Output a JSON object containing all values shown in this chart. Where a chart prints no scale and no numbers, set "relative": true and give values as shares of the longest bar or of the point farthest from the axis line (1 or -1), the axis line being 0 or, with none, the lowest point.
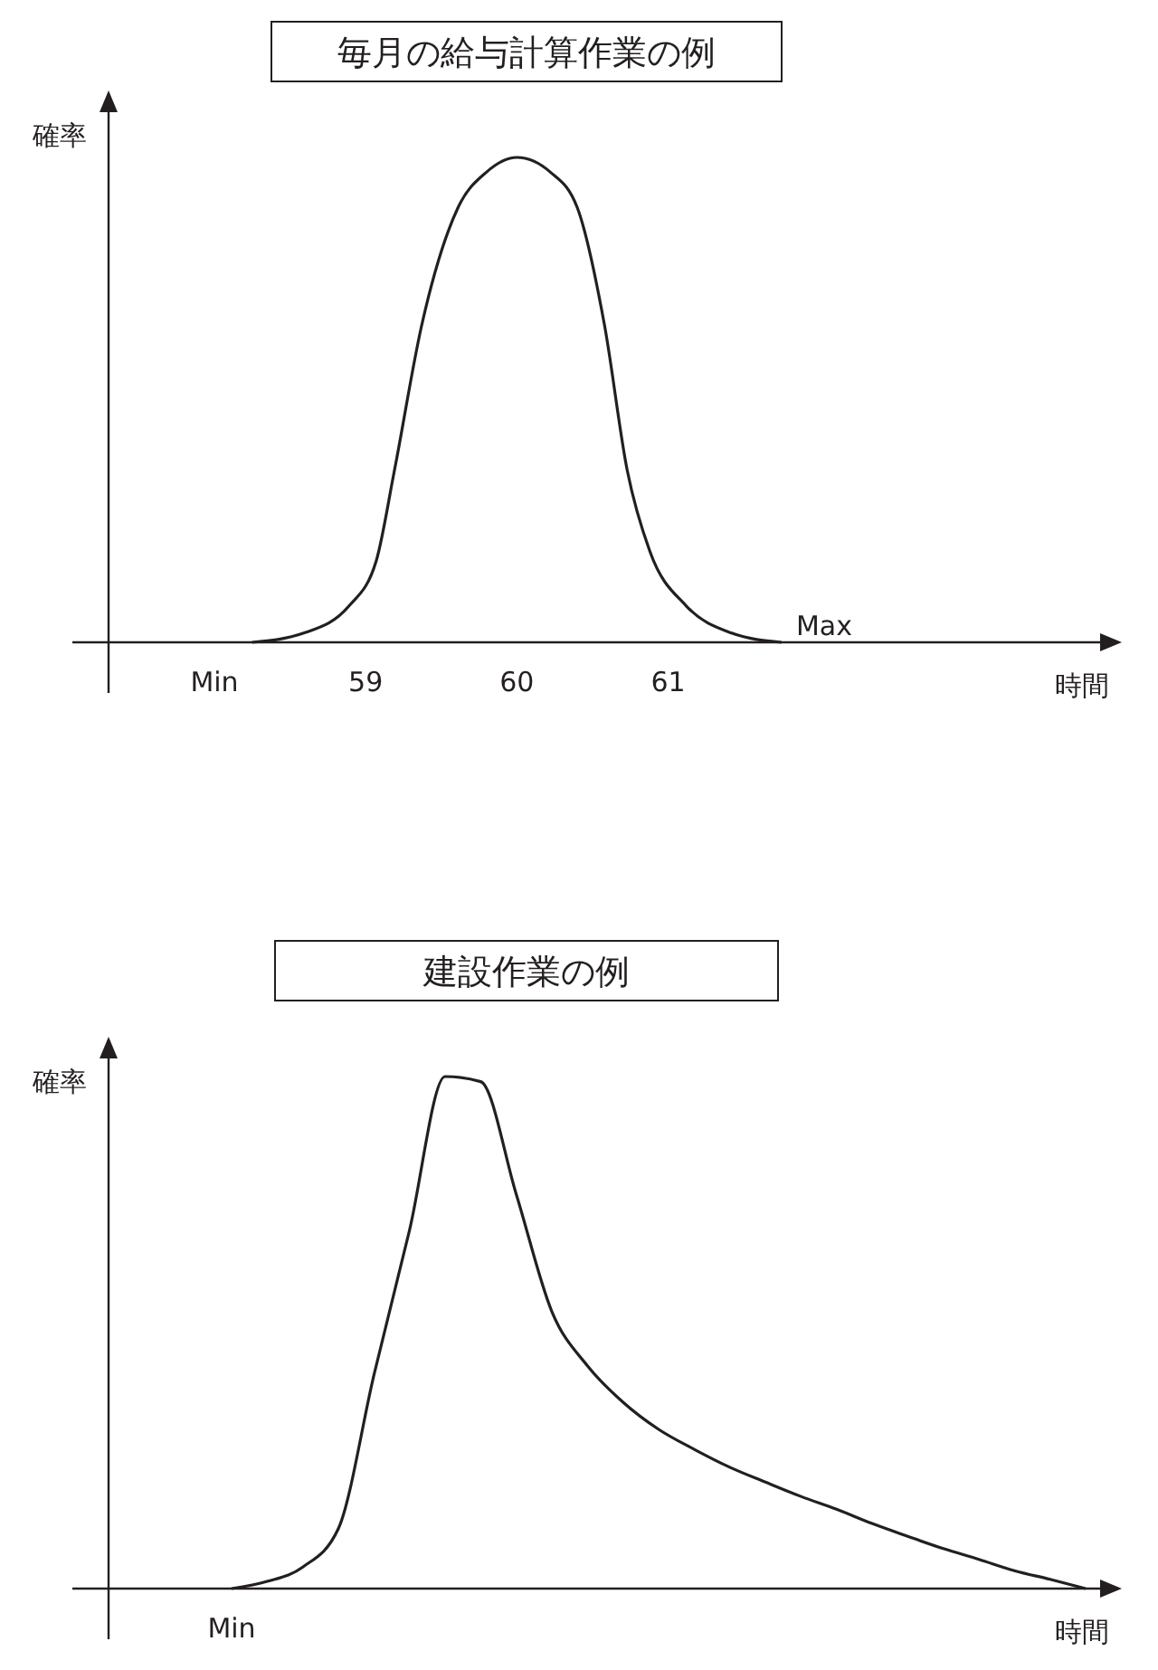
{
  "chart_data": [
    {
      "type": "line",
      "title": "毎月の給与計算作業の例",
      "xlabel": "時間",
      "ylabel": "確率",
      "relative": true,
      "color": "#231f20",
      "marker": "none",
      "x": [
        58.25,
        58.59,
        58.89,
        59.07,
        59.19,
        59.37,
        59.61,
        59.8,
        60,
        60.22,
        60.4,
        60.58,
        60.73,
        60.88,
        61.12,
        61.42,
        61.75
      ],
      "values": [
        0,
        0.019,
        0.075,
        0.168,
        0.354,
        0.653,
        0.896,
        0.97,
        1,
        0.97,
        0.896,
        0.653,
        0.354,
        0.187,
        0.075,
        0.019,
        0
      ],
      "xlim": [
        57.3,
        64
      ],
      "xticks": [
        {
          "value": 58,
          "label": "Min"
        },
        59,
        60,
        61
      ],
      "annotations": [
        {
          "text": "Max",
          "x": 61.75,
          "y": 0
        }
      ]
    },
    {
      "type": "line",
      "title": "建設作業の例",
      "xlabel": "時間",
      "ylabel": "確率",
      "relative": true,
      "color": "#231f20",
      "marker": "none",
      "annotations": [
        "Min"
      ],
      "categories": [
        null,
        null,
        null,
        null,
        null,
        null,
        null,
        null,
        null,
        null,
        null,
        null,
        null,
        null,
        null,
        null,
        null,
        null,
        null,
        null,
        null,
        null,
        null,
        null,
        null
      ],
      "values": [
        0,
        0.014,
        0.042,
        0.117,
        0.417,
        0.7,
        1,
        0.99,
        0.77,
        0.541,
        0.435,
        0.364,
        0.311,
        0.272,
        0.237,
        0.208,
        0.18,
        0.155,
        0.127,
        0.102,
        0.078,
        0.057,
        0.035,
        0.018,
        0
      ]
    }
  ]
}
